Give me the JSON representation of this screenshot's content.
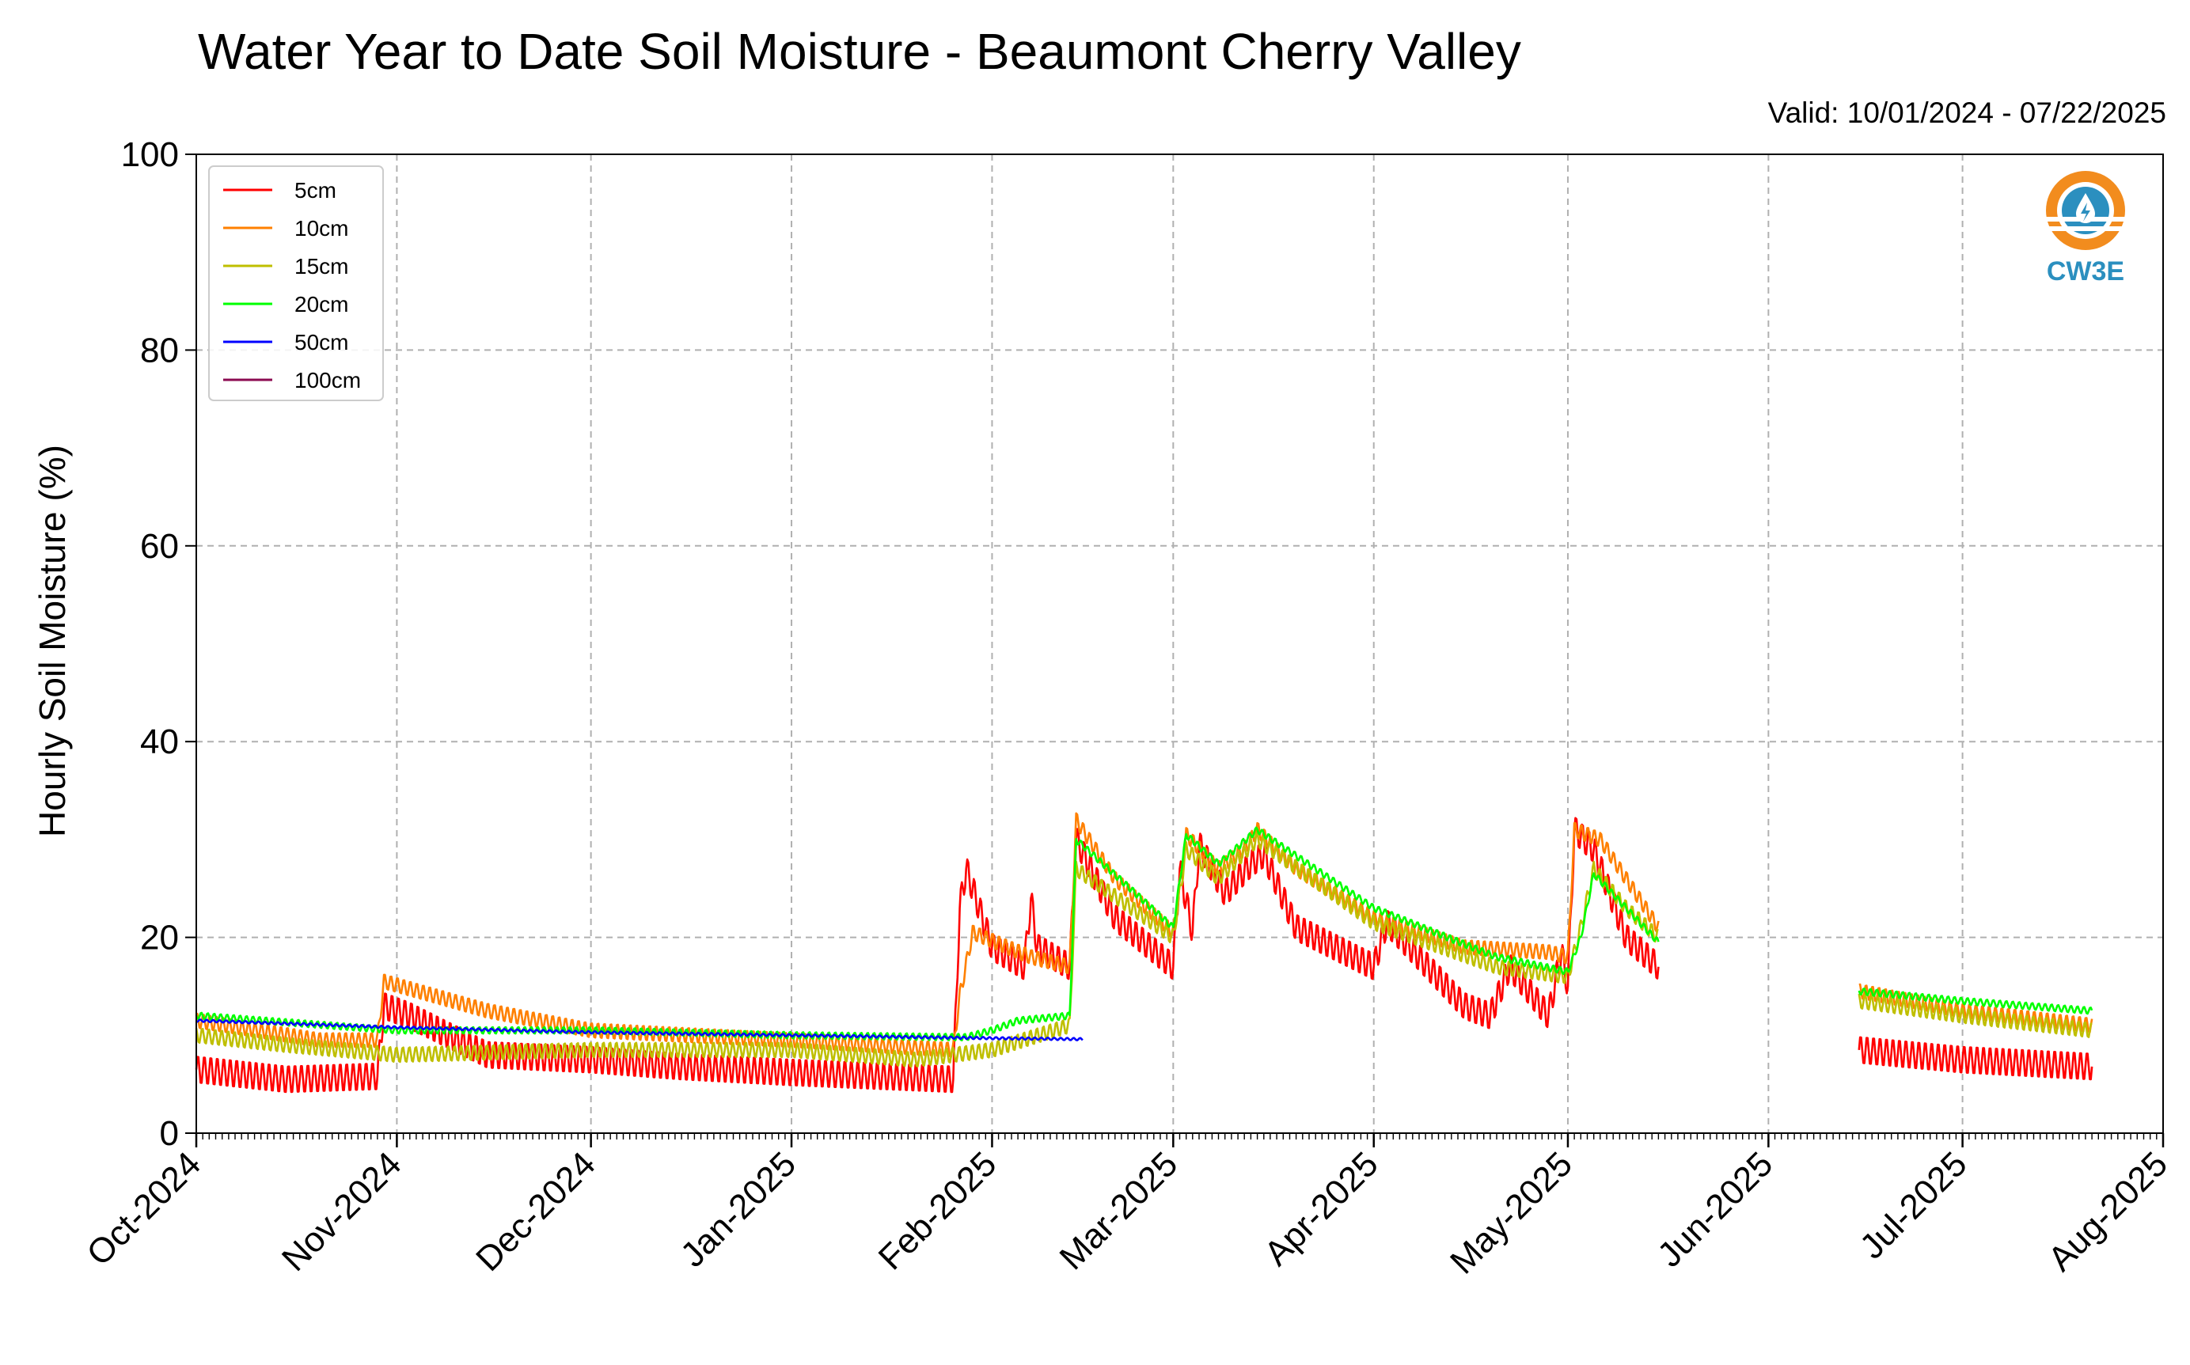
{
  "chart_data": {
    "type": "line",
    "title": "Water Year to Date Soil Moisture - Beaumont Cherry Valley",
    "subtitle": "Valid: 10/01/2024 - 07/22/2025",
    "xlabel": "",
    "ylabel": "Hourly Soil Moisture (%)",
    "x_range": [
      "2024-10-01",
      "2025-08-01"
    ],
    "ylim": [
      0,
      100
    ],
    "yticks": [
      0,
      20,
      40,
      60,
      80,
      100
    ],
    "xtick_dates": [
      "2024-10-01",
      "2024-11-01",
      "2024-12-01",
      "2025-01-01",
      "2025-02-01",
      "2025-03-01",
      "2025-04-01",
      "2025-05-01",
      "2025-06-01",
      "2025-07-01",
      "2025-08-01"
    ],
    "xtick_labels": [
      "Oct-2024",
      "Nov-2024",
      "Dec-2024",
      "Jan-2025",
      "Feb-2025",
      "Mar-2025",
      "Apr-2025",
      "May-2025",
      "Jun-2025",
      "Jul-2025",
      "Aug-2025"
    ],
    "grid": true,
    "legend_position": "top-left",
    "logo_text": "CW3E",
    "series": [
      {
        "name": "5cm",
        "color": "#ff0000",
        "diurnal_amplitude": 1.5,
        "segments": [
          [
            [
              "2024-10-01",
              6.5
            ],
            [
              "2024-10-15",
              5.5
            ],
            [
              "2024-10-29",
              5.8
            ],
            [
              "2024-10-30",
              13.0
            ],
            [
              "2024-11-03",
              12.0
            ],
            [
              "2024-11-15",
              8.0
            ],
            [
              "2024-12-01",
              7.5
            ],
            [
              "2024-12-15",
              6.8
            ],
            [
              "2025-01-01",
              6.2
            ],
            [
              "2025-01-26",
              5.5
            ],
            [
              "2025-01-27",
              23.0
            ],
            [
              "2025-01-28",
              27.0
            ],
            [
              "2025-02-01",
              19.0
            ],
            [
              "2025-02-06",
              17.0
            ],
            [
              "2025-02-07",
              24.0
            ],
            [
              "2025-02-08",
              19.0
            ],
            [
              "2025-02-13",
              17.0
            ],
            [
              "2025-02-14",
              30.0
            ],
            [
              "2025-02-20",
              22.0
            ],
            [
              "2025-03-01",
              17.0
            ],
            [
              "2025-03-02",
              27.0
            ],
            [
              "2025-03-04",
              20.5
            ],
            [
              "2025-03-05",
              29.5
            ],
            [
              "2025-03-09",
              24.5
            ],
            [
              "2025-03-13",
              27.5
            ],
            [
              "2025-03-15",
              28.5
            ],
            [
              "2025-03-20",
              21.0
            ],
            [
              "2025-04-01",
              17.0
            ],
            [
              "2025-04-03",
              21.5
            ],
            [
              "2025-04-15",
              13.0
            ],
            [
              "2025-04-19",
              12.0
            ],
            [
              "2025-04-22",
              17.0
            ],
            [
              "2025-04-28",
              12.0
            ],
            [
              "2025-04-30",
              18.5
            ],
            [
              "2025-05-01",
              15.0
            ],
            [
              "2025-05-02",
              31.0
            ],
            [
              "2025-05-05",
              29.0
            ],
            [
              "2025-05-10",
              20.0
            ],
            [
              "2025-05-15",
              17.0
            ]
          ],
          [
            [
              "2025-06-15",
              8.5
            ],
            [
              "2025-07-01",
              7.5
            ],
            [
              "2025-07-21",
              6.8
            ]
          ]
        ]
      },
      {
        "name": "10cm",
        "color": "#ff8000",
        "diurnal_amplitude": 0.8,
        "segments": [
          [
            [
              "2024-10-01",
              11.5
            ],
            [
              "2024-10-20",
              9.5
            ],
            [
              "2024-10-29",
              9.5
            ],
            [
              "2024-10-30",
              15.5
            ],
            [
              "2024-11-15",
              12.5
            ],
            [
              "2024-12-01",
              10.5
            ],
            [
              "2025-01-01",
              9.5
            ],
            [
              "2025-01-26",
              8.5
            ],
            [
              "2025-01-27",
              14.0
            ],
            [
              "2025-01-29",
              20.5
            ],
            [
              "2025-02-07",
              18.0
            ],
            [
              "2025-02-13",
              17.0
            ],
            [
              "2025-02-14",
              32.0
            ],
            [
              "2025-02-20",
              26.0
            ],
            [
              "2025-03-01",
              20.5
            ],
            [
              "2025-03-02",
              25.0
            ],
            [
              "2025-03-03",
              30.5
            ],
            [
              "2025-03-08",
              27.0
            ],
            [
              "2025-03-12",
              29.0
            ],
            [
              "2025-03-14",
              31.0
            ],
            [
              "2025-03-20",
              27.0
            ],
            [
              "2025-04-01",
              22.0
            ],
            [
              "2025-04-15",
              19.0
            ],
            [
              "2025-04-28",
              18.5
            ],
            [
              "2025-05-01",
              18.0
            ],
            [
              "2025-05-02",
              31.0
            ],
            [
              "2025-05-06",
              30.0
            ],
            [
              "2025-05-10",
              26.0
            ],
            [
              "2025-05-15",
              21.0
            ]
          ],
          [
            [
              "2025-06-15",
              14.5
            ],
            [
              "2025-07-01",
              12.5
            ],
            [
              "2025-07-21",
              11.0
            ]
          ]
        ]
      },
      {
        "name": "15cm",
        "color": "#bfbf00",
        "diurnal_amplitude": 0.8,
        "segments": [
          [
            [
              "2024-10-01",
              10.0
            ],
            [
              "2024-10-15",
              9.0
            ],
            [
              "2024-11-01",
              8.0
            ],
            [
              "2024-12-01",
              8.5
            ],
            [
              "2025-01-01",
              8.5
            ],
            [
              "2025-01-20",
              7.5
            ],
            [
              "2025-02-01",
              8.5
            ],
            [
              "2025-02-13",
              11.0
            ],
            [
              "2025-02-14",
              27.0
            ],
            [
              "2025-03-01",
              20.0
            ],
            [
              "2025-03-03",
              29.0
            ],
            [
              "2025-03-08",
              26.0
            ],
            [
              "2025-03-14",
              30.0
            ],
            [
              "2025-04-01",
              21.5
            ],
            [
              "2025-04-20",
              17.0
            ],
            [
              "2025-05-01",
              16.0
            ],
            [
              "2025-05-03",
              21.0
            ],
            [
              "2025-05-05",
              27.0
            ],
            [
              "2025-05-10",
              23.0
            ],
            [
              "2025-05-15",
              20.0
            ]
          ],
          [
            [
              "2025-06-15",
              13.5
            ],
            [
              "2025-07-01",
              12.0
            ],
            [
              "2025-07-21",
              10.5
            ]
          ]
        ]
      },
      {
        "name": "20cm",
        "color": "#00ff00",
        "diurnal_amplitude": 0.35,
        "segments": [
          [
            [
              "2024-10-01",
              12.0
            ],
            [
              "2024-11-01",
              10.5
            ],
            [
              "2024-12-01",
              10.5
            ],
            [
              "2025-01-01",
              10.0
            ],
            [
              "2025-01-28",
              9.8
            ],
            [
              "2025-02-01",
              10.5
            ],
            [
              "2025-02-05",
              11.5
            ],
            [
              "2025-02-13",
              12.0
            ],
            [
              "2025-02-14",
              30.0
            ],
            [
              "2025-03-01",
              21.0
            ],
            [
              "2025-03-03",
              30.5
            ],
            [
              "2025-03-08",
              27.5
            ],
            [
              "2025-03-14",
              31.0
            ],
            [
              "2025-04-01",
              23.0
            ],
            [
              "2025-04-20",
              18.0
            ],
            [
              "2025-05-01",
              16.5
            ],
            [
              "2025-05-03",
              20.0
            ],
            [
              "2025-05-05",
              26.5
            ],
            [
              "2025-05-10",
              23.0
            ],
            [
              "2025-05-15",
              19.5
            ]
          ],
          [
            [
              "2025-06-15",
              14.5
            ],
            [
              "2025-07-01",
              13.5
            ],
            [
              "2025-07-21",
              12.5
            ]
          ]
        ]
      },
      {
        "name": "50cm",
        "color": "#0000ff",
        "diurnal_amplitude": 0.12,
        "segments": [
          [
            [
              "2024-10-01",
              11.5
            ],
            [
              "2024-10-15",
              11.2
            ],
            [
              "2024-11-01",
              10.8
            ],
            [
              "2024-12-01",
              10.3
            ],
            [
              "2025-01-01",
              10.0
            ],
            [
              "2025-02-01",
              9.7
            ],
            [
              "2025-02-15",
              9.6
            ]
          ]
        ]
      },
      {
        "name": "100cm",
        "color": "#8b0a50",
        "diurnal_amplitude": 0,
        "segments": []
      }
    ]
  }
}
